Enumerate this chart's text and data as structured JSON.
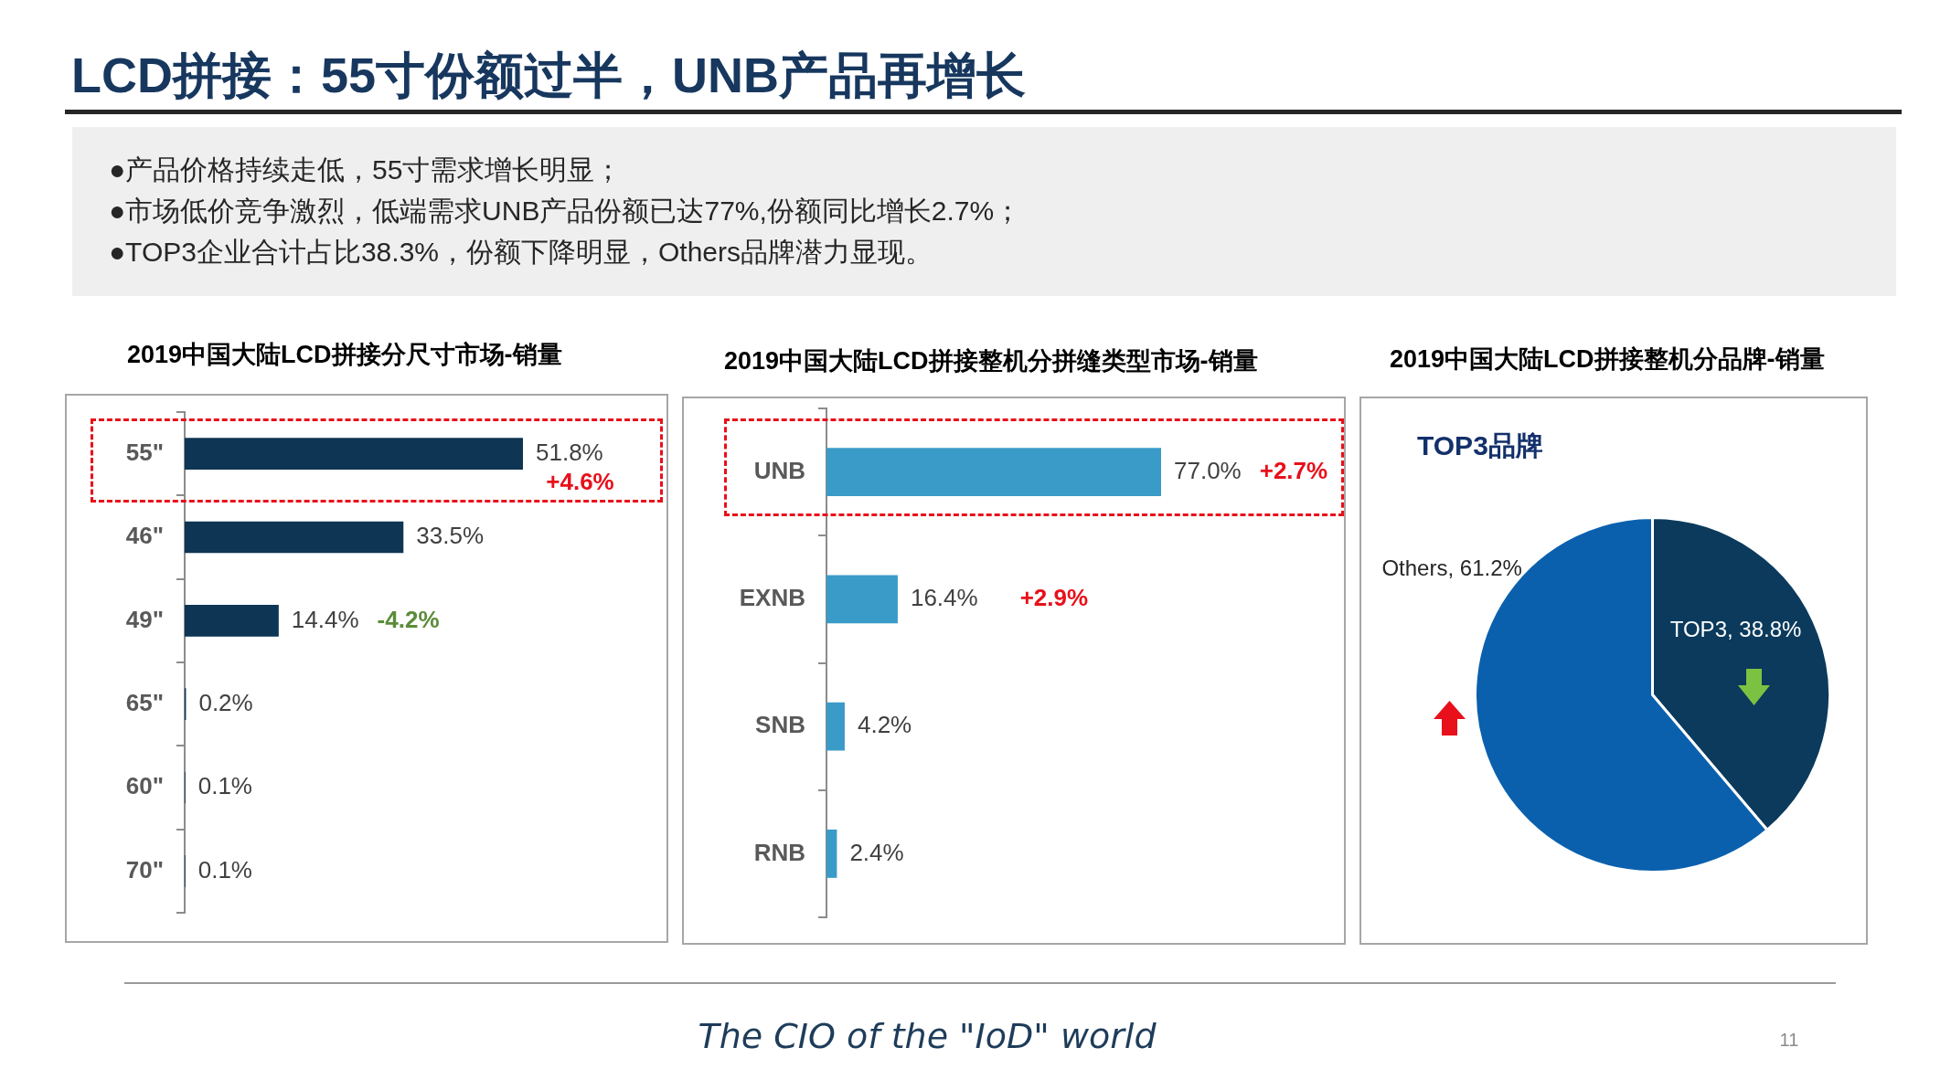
{
  "chart_data": [
    {
      "type": "other",
      "title": "LCD拼接：55寸份额过半，UNB产品再增长",
      "annotations": [
        "●产品价格持续走低，55寸需求增长明显；",
        "●市场低价竞争激烈，低端需求UNB产品份额已达77%,份额同比增长2.7%；",
        "●TOP3企业合计占比38.3%，份额下降明显，Others品牌潜力显现。"
      ]
    },
    {
      "type": "bar",
      "orientation": "horizontal",
      "title": "2019中国大陆LCD拼接分尺寸市场-销量",
      "categories": [
        "55\"",
        "46\"",
        "49\"",
        "65\"",
        "60\"",
        "70\""
      ],
      "values": [
        51.8,
        33.5,
        14.4,
        0.2,
        0.1,
        0.1
      ],
      "color": "#0e3553",
      "value_labels": [
        "51.8%",
        "33.5%",
        "14.4%",
        "0.2%",
        "0.1%",
        "0.1%"
      ],
      "annotations": [
        "+4.6%",
        "-4.2%"
      ]
    },
    {
      "type": "bar",
      "orientation": "horizontal",
      "title": "2019中国大陆LCD拼接整机分拼缝类型市场-销量",
      "categories": [
        "UNB",
        "EXNB",
        "SNB",
        "RNB"
      ],
      "values": [
        77.0,
        16.4,
        4.2,
        2.4
      ],
      "color": "#3a9bc8",
      "value_labels": [
        "77.0%",
        "16.4%",
        "4.2%",
        "2.4%"
      ],
      "annotations": [
        "+2.7%",
        "+2.9%"
      ]
    },
    {
      "type": "pie",
      "title": "2019中国大陆LCD拼接整机分品牌-销量",
      "subtitle": "TOP3品牌",
      "categories": [
        "TOP3",
        "Others"
      ],
      "values": [
        38.8,
        61.2
      ],
      "colors": [
        "#0b3a5c",
        "#0a60ad"
      ],
      "value_labels": [
        "38.8%",
        "61.2%"
      ]
    },
    {
      "type": "other",
      "annotations": [
        "The CIO of the \"IoD\" world",
        "11"
      ]
    }
  ]
}
